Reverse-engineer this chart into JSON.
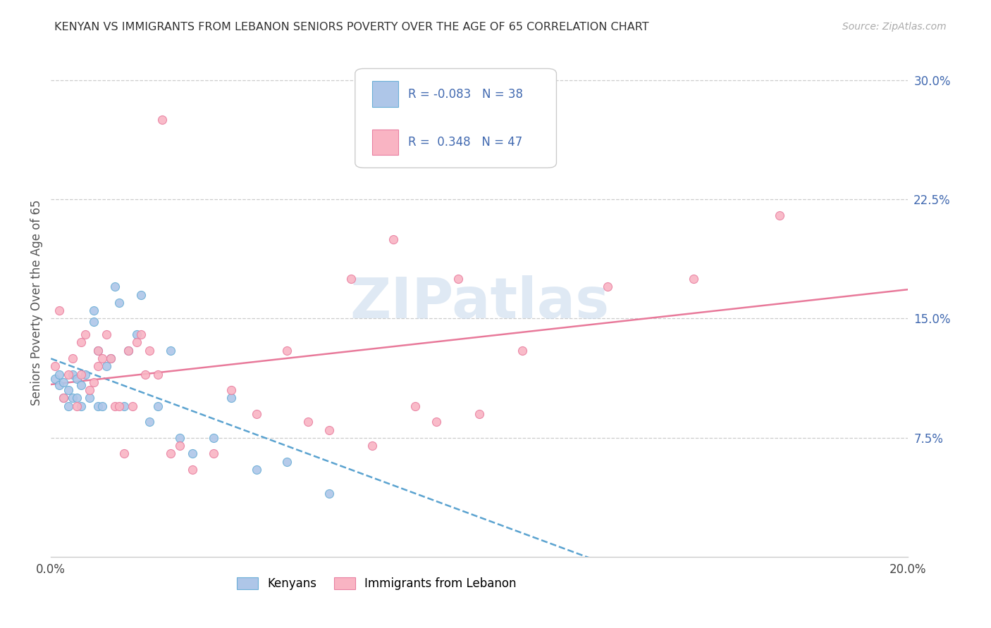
{
  "title": "KENYAN VS IMMIGRANTS FROM LEBANON SENIORS POVERTY OVER THE AGE OF 65 CORRELATION CHART",
  "source": "Source: ZipAtlas.com",
  "ylabel": "Seniors Poverty Over the Age of 65",
  "xlim": [
    0.0,
    0.2
  ],
  "ylim": [
    0.0,
    0.32
  ],
  "x_ticks": [
    0.0,
    0.05,
    0.1,
    0.15,
    0.2
  ],
  "x_tick_labels": [
    "0.0%",
    "",
    "",
    "",
    "20.0%"
  ],
  "y_ticks_right": [
    0.075,
    0.15,
    0.225,
    0.3
  ],
  "y_tick_labels_right": [
    "7.5%",
    "15.0%",
    "22.5%",
    "30.0%"
  ],
  "color_kenyan_fill": "#aec6e8",
  "color_kenyan_edge": "#6aaed6",
  "color_lebanon_fill": "#f9b4c3",
  "color_lebanon_edge": "#e87fa0",
  "color_kenyan_line": "#5ba3d0",
  "color_lebanon_line": "#e8799a",
  "color_text_blue": "#4169b0",
  "color_grid": "#cccccc",
  "watermark_text": "ZIPatlas",
  "watermark_color": "#c5d8ec",
  "kenyan_x": [
    0.001,
    0.002,
    0.002,
    0.003,
    0.003,
    0.004,
    0.004,
    0.005,
    0.005,
    0.006,
    0.006,
    0.007,
    0.007,
    0.008,
    0.009,
    0.01,
    0.01,
    0.011,
    0.011,
    0.012,
    0.013,
    0.014,
    0.015,
    0.016,
    0.017,
    0.018,
    0.02,
    0.021,
    0.023,
    0.025,
    0.028,
    0.03,
    0.033,
    0.038,
    0.042,
    0.048,
    0.055,
    0.065
  ],
  "kenyan_y": [
    0.112,
    0.108,
    0.115,
    0.11,
    0.1,
    0.105,
    0.095,
    0.115,
    0.1,
    0.112,
    0.1,
    0.108,
    0.095,
    0.115,
    0.1,
    0.155,
    0.148,
    0.13,
    0.095,
    0.095,
    0.12,
    0.125,
    0.17,
    0.16,
    0.095,
    0.13,
    0.14,
    0.165,
    0.085,
    0.095,
    0.13,
    0.075,
    0.065,
    0.075,
    0.1,
    0.055,
    0.06,
    0.04
  ],
  "lebanon_x": [
    0.001,
    0.002,
    0.003,
    0.004,
    0.005,
    0.006,
    0.007,
    0.007,
    0.008,
    0.009,
    0.01,
    0.011,
    0.011,
    0.012,
    0.013,
    0.014,
    0.015,
    0.016,
    0.017,
    0.018,
    0.019,
    0.02,
    0.021,
    0.022,
    0.023,
    0.025,
    0.026,
    0.028,
    0.03,
    0.033,
    0.038,
    0.042,
    0.048,
    0.055,
    0.06,
    0.065,
    0.07,
    0.075,
    0.08,
    0.085,
    0.09,
    0.095,
    0.1,
    0.11,
    0.13,
    0.15,
    0.17
  ],
  "lebanon_y": [
    0.12,
    0.155,
    0.1,
    0.115,
    0.125,
    0.095,
    0.135,
    0.115,
    0.14,
    0.105,
    0.11,
    0.13,
    0.12,
    0.125,
    0.14,
    0.125,
    0.095,
    0.095,
    0.065,
    0.13,
    0.095,
    0.135,
    0.14,
    0.115,
    0.13,
    0.115,
    0.275,
    0.065,
    0.07,
    0.055,
    0.065,
    0.105,
    0.09,
    0.13,
    0.085,
    0.08,
    0.175,
    0.07,
    0.2,
    0.095,
    0.085,
    0.175,
    0.09,
    0.13,
    0.17,
    0.175,
    0.215
  ]
}
